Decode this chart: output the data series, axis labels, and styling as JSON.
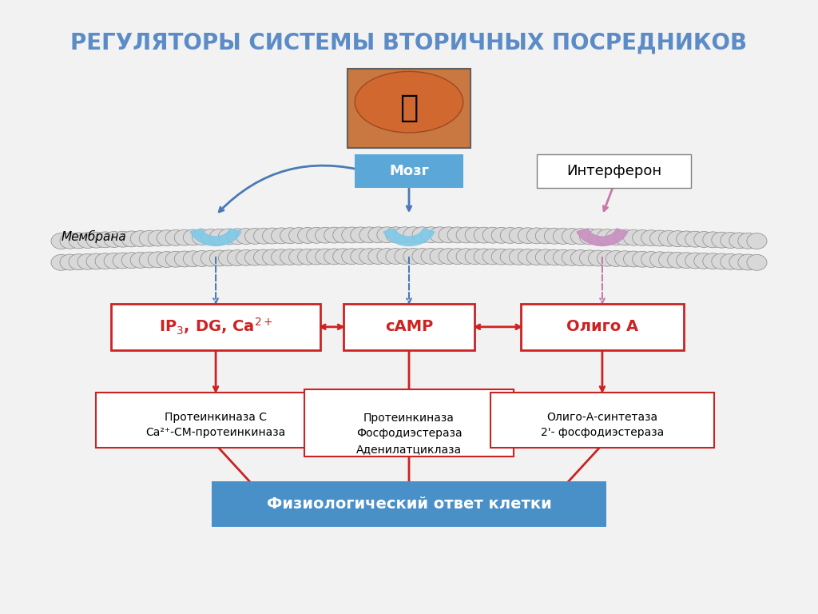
{
  "title": "РЕГУЛЯТОРЫ СИСТЕМЫ ВТОРИЧНЫХ ПОСРЕДНИКОВ",
  "title_color": "#5b8cc8",
  "bg_color": "#f0f0f0",
  "membrane_color": "#c8c8c8",
  "receptor_blue_color": "#a8d8e8",
  "receptor_pink_color": "#d8a8c8",
  "mozg_label": "Мозг",
  "interferon_label": "Интерферон",
  "membrana_label": "Мембрана",
  "box1_label": "IP₃, DG, Ca²⁺",
  "box2_label": "cAMP",
  "box3_label": "Олиго A",
  "sub1_line1": "Протеинкиназа C",
  "sub1_line2": "Ca²⁺-CM-протеинкиназа",
  "sub2_line1": "Протеинкиназа",
  "sub2_line2": "Фосфодиэстераза",
  "sub2_line3": "Аденилатциклаза",
  "sub3_line1": "Олиго-А-синтетаза",
  "sub3_line2": "2'- фосфодиэстераза",
  "final_label": "Физиологический ответ клетки",
  "final_bg": "#4a90c8",
  "red_color": "#cc2222",
  "blue_color": "#4a7ab5",
  "pink_color": "#c878a8"
}
